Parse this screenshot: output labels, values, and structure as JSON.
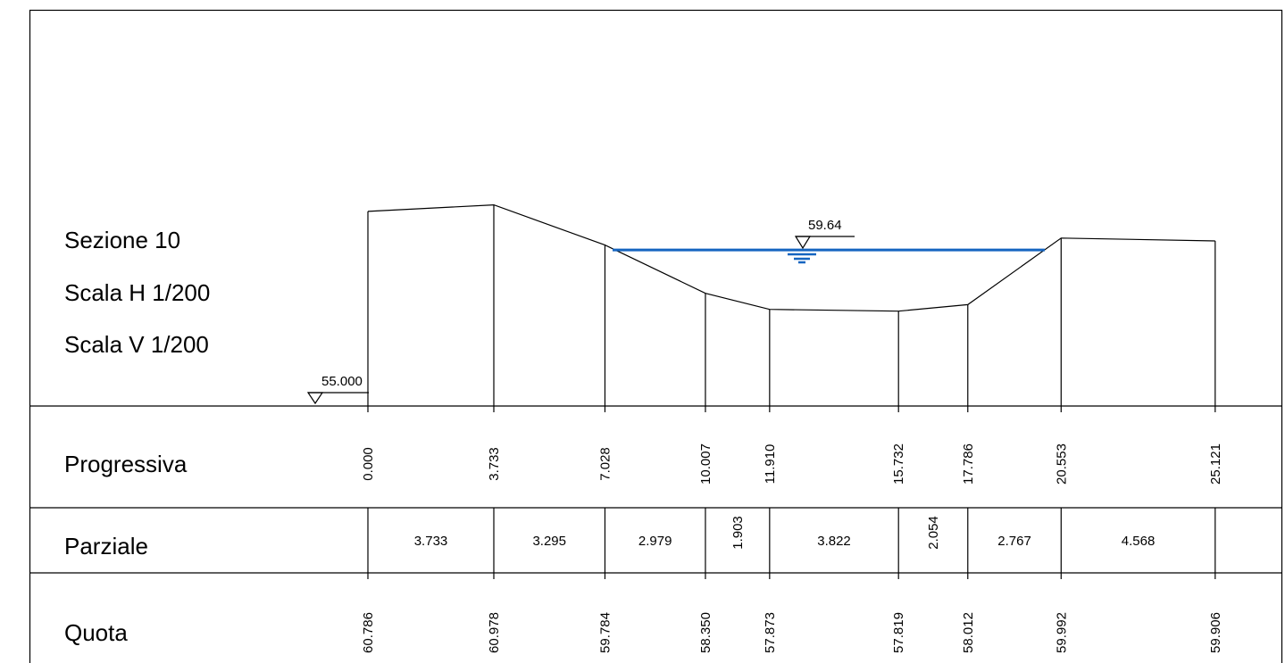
{
  "section": {
    "title": "Sezione 10",
    "scale_h": "Scala H 1/200",
    "scale_v": "Scala V 1/200",
    "datum_label": "55.000",
    "water_level_label": "59.64",
    "water_color": "#1565c0"
  },
  "table": {
    "row_progressiva": "Progressiva",
    "row_parziale": "Parziale",
    "row_quota": "Quota"
  },
  "points": [
    {
      "progressiva": "0.000",
      "quota": "60.786"
    },
    {
      "progressiva": "3.733",
      "quota": "60.978"
    },
    {
      "progressiva": "7.028",
      "quota": "59.784"
    },
    {
      "progressiva": "10.007",
      "quota": "58.350"
    },
    {
      "progressiva": "11.910",
      "quota": "57.873"
    },
    {
      "progressiva": "15.732",
      "quota": "57.819"
    },
    {
      "progressiva": "17.786",
      "quota": "58.012"
    },
    {
      "progressiva": "20.553",
      "quota": "59.992"
    },
    {
      "progressiva": "25.121",
      "quota": "59.906"
    }
  ],
  "parziali": [
    "3.733",
    "3.295",
    "2.979",
    "1.903",
    "3.822",
    "2.054",
    "2.767",
    "4.568"
  ]
}
